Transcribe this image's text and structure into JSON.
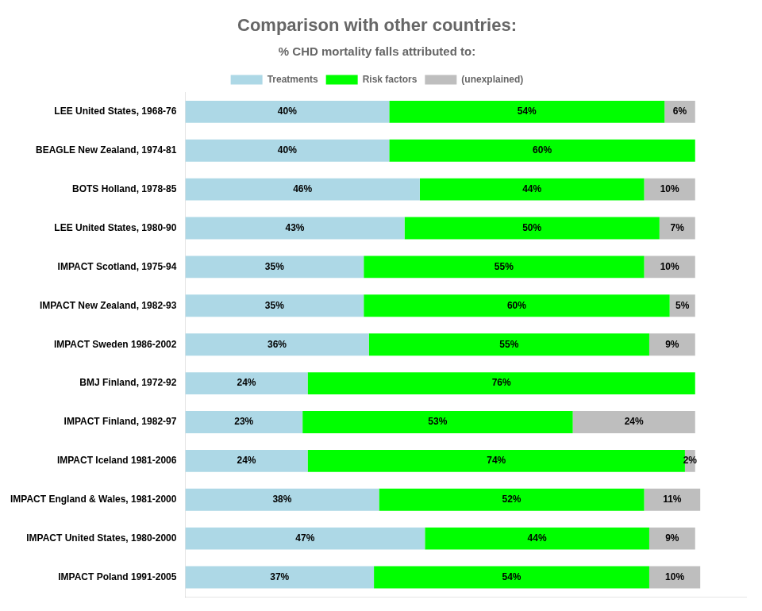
{
  "chart_data": {
    "type": "bar",
    "orientation": "horizontal",
    "stacked": true,
    "title": "Comparison with other countries:",
    "subtitle": "% CHD mortality falls attributed to:",
    "categories": [
      "LEE United States, 1968-76",
      "BEAGLE New Zealand, 1974-81",
      "BOTS Holland, 1978-85",
      "LEE United States, 1980-90",
      "IMPACT Scotland, 1975-94",
      "IMPACT New Zealand, 1982-93",
      "IMPACT Sweden 1986-2002",
      "BMJ Finland, 1972-92",
      "IMPACT Finland, 1982-97",
      "IMPACT Iceland 1981-2006",
      "IMPACT England & Wales, 1981-2000",
      "IMPACT United States, 1980-2000",
      "IMPACT Poland 1991-2005"
    ],
    "series": [
      {
        "name": "Treatments",
        "color": "#ADD8E6",
        "values": [
          40,
          40,
          46,
          43,
          35,
          35,
          36,
          24,
          23,
          24,
          38,
          47,
          37
        ],
        "value_labels": [
          "40%",
          "40%",
          "46%",
          "43%",
          "35%",
          "35%",
          "36%",
          "24%",
          "23%",
          "24%",
          "38%",
          "47%",
          "37%"
        ]
      },
      {
        "name": "Risk factors",
        "color": "#00FF00",
        "values": [
          54,
          60,
          44,
          50,
          55,
          60,
          55,
          76,
          53,
          74,
          52,
          44,
          54
        ],
        "value_labels": [
          "54%",
          "60%",
          "44%",
          "50%",
          "55%",
          "60%",
          "55%",
          "76%",
          "53%",
          "74%",
          "52%",
          "44%",
          "54%"
        ]
      },
      {
        "name": "(unexplained)",
        "color": "#BEBEBE",
        "values": [
          6,
          null,
          10,
          7,
          10,
          5,
          9,
          null,
          24,
          2,
          11,
          9,
          10
        ],
        "value_labels": [
          "6%",
          null,
          "10%",
          "7%",
          "10%",
          "5%",
          "9%",
          null,
          "24%",
          "2%",
          "11%",
          "9%",
          "10%"
        ]
      }
    ],
    "xlim": [
      0,
      110
    ],
    "tick_labels": "y",
    "grid": false,
    "legend": "top",
    "data_labels": true
  }
}
